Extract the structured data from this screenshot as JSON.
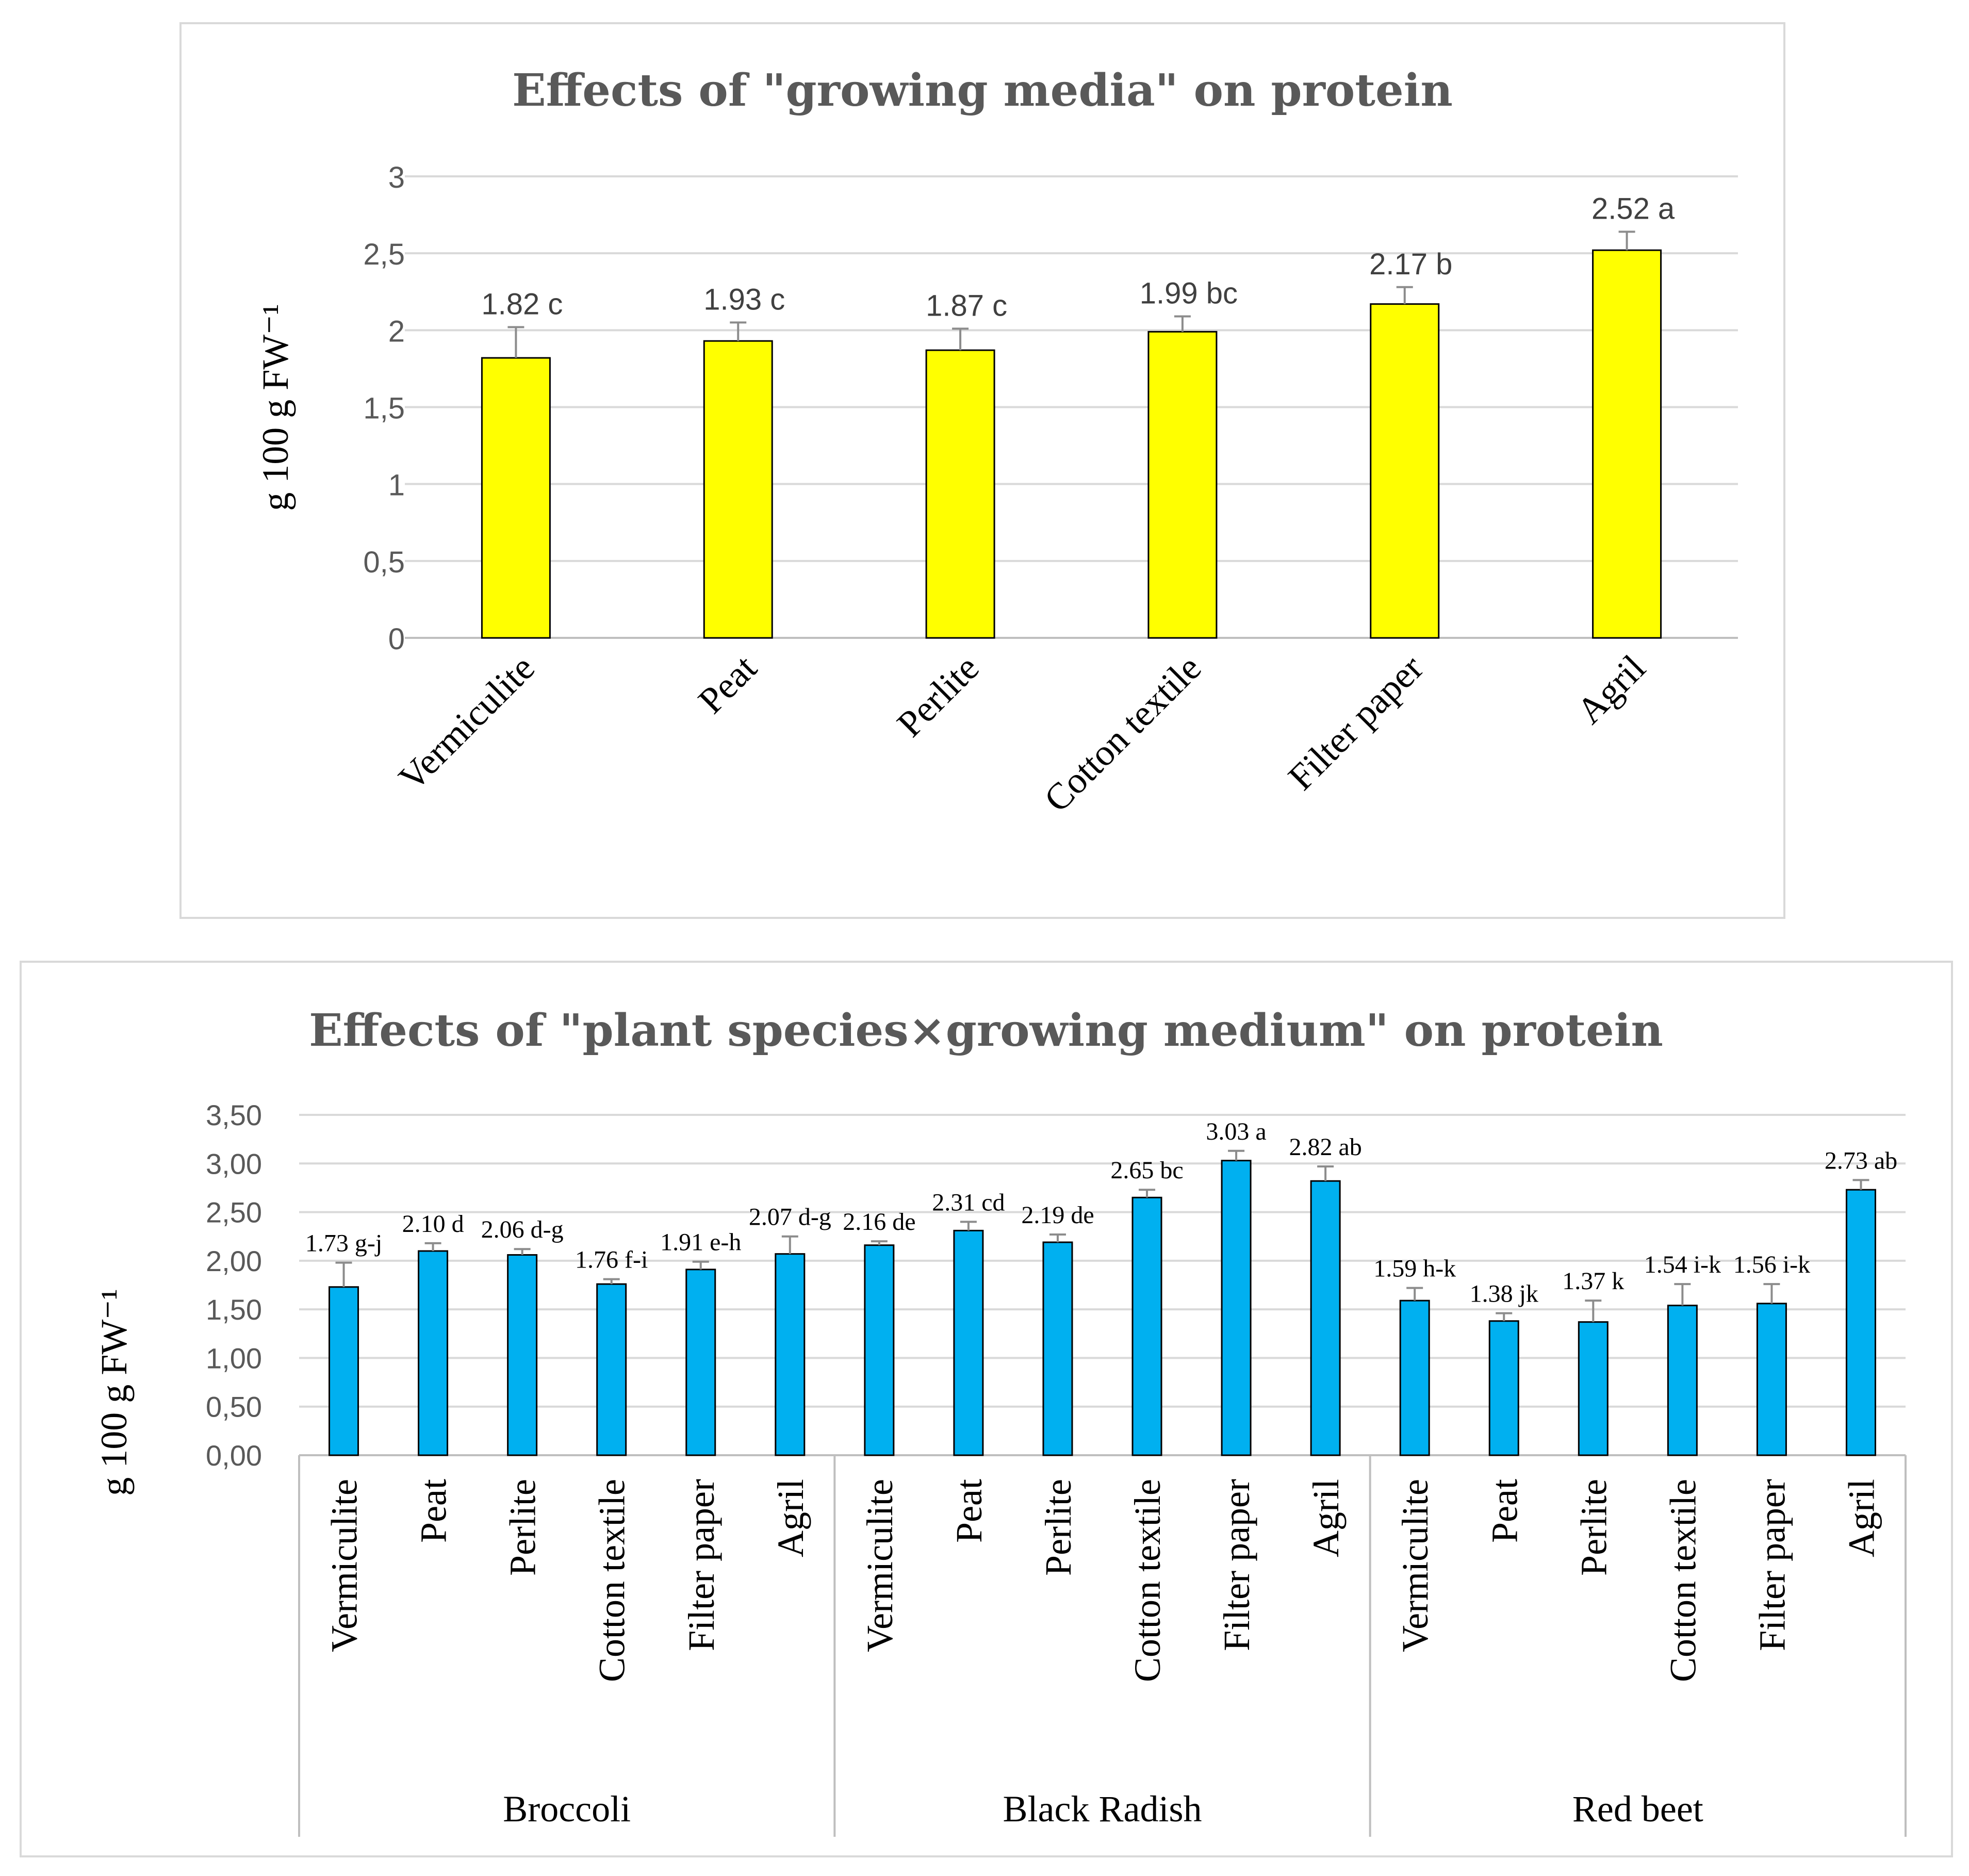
{
  "chart_data": [
    {
      "type": "bar",
      "title": "Effects of \"growing media\" on protein",
      "ylabel": "g 100 g FW⁻¹",
      "xlabel": "",
      "ylim": [
        0,
        3
      ],
      "yticks": [
        0,
        0.5,
        1,
        1.5,
        2,
        2.5,
        3
      ],
      "ytick_labels": [
        "0",
        "0,5",
        "1",
        "1,5",
        "2",
        "2,5",
        "3"
      ],
      "categories": [
        "Vermiculite",
        "Peat",
        "Perlite",
        "Cotton textile",
        "Filter paper",
        "Agril"
      ],
      "values": [
        1.82,
        1.93,
        1.87,
        1.99,
        2.17,
        2.52
      ],
      "errors": [
        0.2,
        0.12,
        0.14,
        0.1,
        0.11,
        0.12
      ],
      "labels": [
        "1.82 c",
        "1.93 c",
        "1.87 c",
        "1.99 bc",
        "2.17 b",
        "2.52 a"
      ],
      "color": "#ffff00",
      "grid": true
    },
    {
      "type": "bar",
      "title": "Effects of \"plant species×growing medium\" on protein",
      "ylabel": "g 100 g FW⁻¹",
      "xlabel": "",
      "ylim": [
        0,
        3.5
      ],
      "yticks": [
        0,
        0.5,
        1,
        1.5,
        2,
        2.5,
        3,
        3.5
      ],
      "ytick_labels": [
        "0,00",
        "0,50",
        "1,00",
        "1,50",
        "2,00",
        "2,50",
        "3,00",
        "3,50"
      ],
      "groups": [
        "Broccoli",
        "Black Radish",
        "Red beet"
      ],
      "categories": [
        "Vermiculite",
        "Peat",
        "Perlite",
        "Cotton textile",
        "Filter paper",
        "Agril"
      ],
      "values": [
        1.73,
        2.1,
        2.06,
        1.76,
        1.91,
        2.07,
        2.16,
        2.31,
        2.19,
        2.65,
        3.03,
        2.82,
        1.59,
        1.38,
        1.37,
        1.54,
        1.56,
        2.73
      ],
      "errors": [
        0.25,
        0.08,
        0.06,
        0.05,
        0.08,
        0.18,
        0.04,
        0.09,
        0.08,
        0.08,
        0.1,
        0.15,
        0.13,
        0.08,
        0.22,
        0.22,
        0.2,
        0.1
      ],
      "labels": [
        "1.73 g-j",
        "2.10 d",
        "2.06 d-g",
        "1.76 f-i",
        "1.91 e-h",
        "2.07 d-g",
        "2.16 de",
        "2.31 cd",
        "2.19 de",
        "2.65 bc",
        "3.03 a",
        "2.82 ab",
        "1.59 h-k",
        "1.38 jk",
        "1.37 k",
        "1.54 i-k",
        "1.56 i-k",
        "2.73 ab"
      ],
      "color": "#00b0f0",
      "grid": true
    }
  ]
}
